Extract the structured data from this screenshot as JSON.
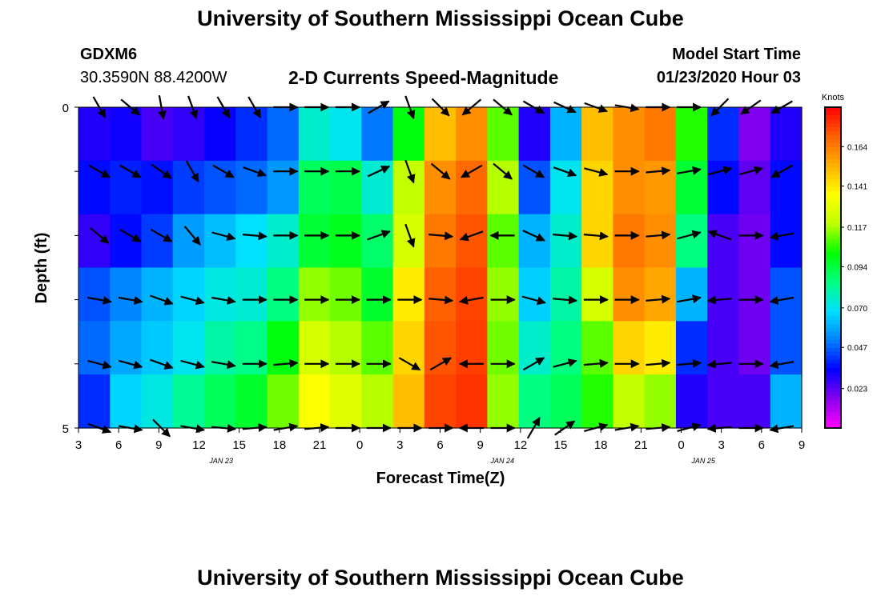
{
  "header": {
    "title": "University of Southern Mississippi Ocean Cube",
    "station": "GDXM6",
    "coords": "30.3590N 88.4200W",
    "subtitle": "2-D Currents Speed-Magnitude",
    "model_start_label": "Model Start Time",
    "model_start_value": "01/23/2020 Hour 03"
  },
  "footer": {
    "title": "University of Southern Mississippi Ocean Cube"
  },
  "chart_data": {
    "type": "heatmap",
    "title": "2-D Currents Speed-Magnitude",
    "xlabel": "Forecast Time(Z)",
    "ylabel": "Depth (ft)",
    "x_ticks": [
      "3",
      "6",
      "9",
      "12",
      "15",
      "18",
      "21",
      "0",
      "3",
      "6",
      "9",
      "12",
      "15",
      "18",
      "21",
      "0",
      "3",
      "6",
      "9"
    ],
    "date_labels": [
      {
        "after_tick": 3,
        "text": "JAN 23"
      },
      {
        "after_tick": 10,
        "text": "JAN 24"
      },
      {
        "after_tick": 15,
        "text": "JAN 25"
      }
    ],
    "y_ticks": [
      "0",
      "5"
    ],
    "ylim": [
      0,
      5
    ],
    "colorbar": {
      "unit": "Knots",
      "range": [
        0.0,
        0.187
      ],
      "labels": [
        "0.023",
        "0.047",
        "0.070",
        "0.094",
        "0.117",
        "0.141",
        "0.164"
      ]
    },
    "column_speeds": [
      [
        0.03,
        0.035,
        0.028,
        0.045,
        0.048,
        0.04
      ],
      [
        0.032,
        0.038,
        0.035,
        0.052,
        0.058,
        0.066
      ],
      [
        0.025,
        0.036,
        0.042,
        0.06,
        0.064,
        0.072
      ],
      [
        0.028,
        0.042,
        0.056,
        0.066,
        0.07,
        0.082
      ],
      [
        0.033,
        0.045,
        0.062,
        0.072,
        0.08,
        0.09
      ],
      [
        0.04,
        0.048,
        0.068,
        0.074,
        0.084,
        0.096
      ],
      [
        0.048,
        0.055,
        0.075,
        0.085,
        0.1,
        0.112
      ],
      [
        0.075,
        0.09,
        0.095,
        0.115,
        0.125,
        0.135
      ],
      [
        0.07,
        0.092,
        0.098,
        0.112,
        0.118,
        0.128
      ],
      [
        0.05,
        0.074,
        0.088,
        0.096,
        0.11,
        0.118
      ],
      [
        0.1,
        0.12,
        0.125,
        0.14,
        0.145,
        0.15
      ],
      [
        0.15,
        0.16,
        0.165,
        0.17,
        0.172,
        0.175
      ],
      [
        0.16,
        0.168,
        0.172,
        0.175,
        0.176,
        0.178
      ],
      [
        0.11,
        0.118,
        0.11,
        0.115,
        0.112,
        0.115
      ],
      [
        0.03,
        0.045,
        0.06,
        0.065,
        0.075,
        0.085
      ],
      [
        0.06,
        0.07,
        0.075,
        0.08,
        0.085,
        0.09
      ],
      [
        0.15,
        0.145,
        0.145,
        0.125,
        0.11,
        0.105
      ],
      [
        0.16,
        0.16,
        0.165,
        0.16,
        0.145,
        0.12
      ],
      [
        0.165,
        0.158,
        0.16,
        0.155,
        0.14,
        0.115
      ],
      [
        0.105,
        0.095,
        0.085,
        0.06,
        0.04,
        0.03
      ],
      [
        0.04,
        0.035,
        0.025,
        0.025,
        0.025,
        0.025
      ],
      [
        0.018,
        0.022,
        0.02,
        0.02,
        0.02,
        0.025
      ],
      [
        0.03,
        0.035,
        0.035,
        0.045,
        0.045,
        0.06
      ]
    ],
    "arrows_deg": [
      [
        -60,
        -30,
        -40,
        -10,
        -15,
        -20
      ],
      [
        -40,
        -30,
        -30,
        -10,
        -15,
        -10
      ],
      [
        -80,
        -35,
        -30,
        -20,
        -20,
        -45
      ],
      [
        -70,
        -60,
        -50,
        -15,
        -15,
        -10
      ],
      [
        -60,
        -30,
        -15,
        -10,
        -10,
        -5
      ],
      [
        -60,
        -20,
        -5,
        0,
        0,
        5
      ],
      [
        0,
        0,
        0,
        0,
        5,
        10
      ],
      [
        0,
        0,
        0,
        0,
        0,
        5
      ],
      [
        0,
        0,
        0,
        0,
        0,
        0
      ],
      [
        30,
        25,
        20,
        0,
        0,
        0
      ],
      [
        -70,
        -70,
        -70,
        0,
        -30,
        0
      ],
      [
        -45,
        -40,
        -5,
        -5,
        30,
        0
      ],
      [
        -140,
        -150,
        -160,
        -170,
        -180,
        180
      ],
      [
        -40,
        -40,
        180,
        0,
        0,
        0
      ],
      [
        -30,
        -30,
        -25,
        -15,
        30,
        60
      ],
      [
        -25,
        -20,
        -5,
        -5,
        15,
        35
      ],
      [
        -20,
        -15,
        -5,
        0,
        5,
        15
      ],
      [
        -10,
        0,
        0,
        0,
        0,
        10
      ],
      [
        0,
        5,
        5,
        5,
        5,
        5
      ],
      [
        0,
        10,
        15,
        10,
        5,
        15
      ],
      [
        -135,
        15,
        160,
        -175,
        -175,
        -175
      ],
      [
        -145,
        15,
        0,
        0,
        0,
        0
      ],
      [
        -150,
        -150,
        -170,
        -170,
        -170,
        -170
      ]
    ]
  }
}
